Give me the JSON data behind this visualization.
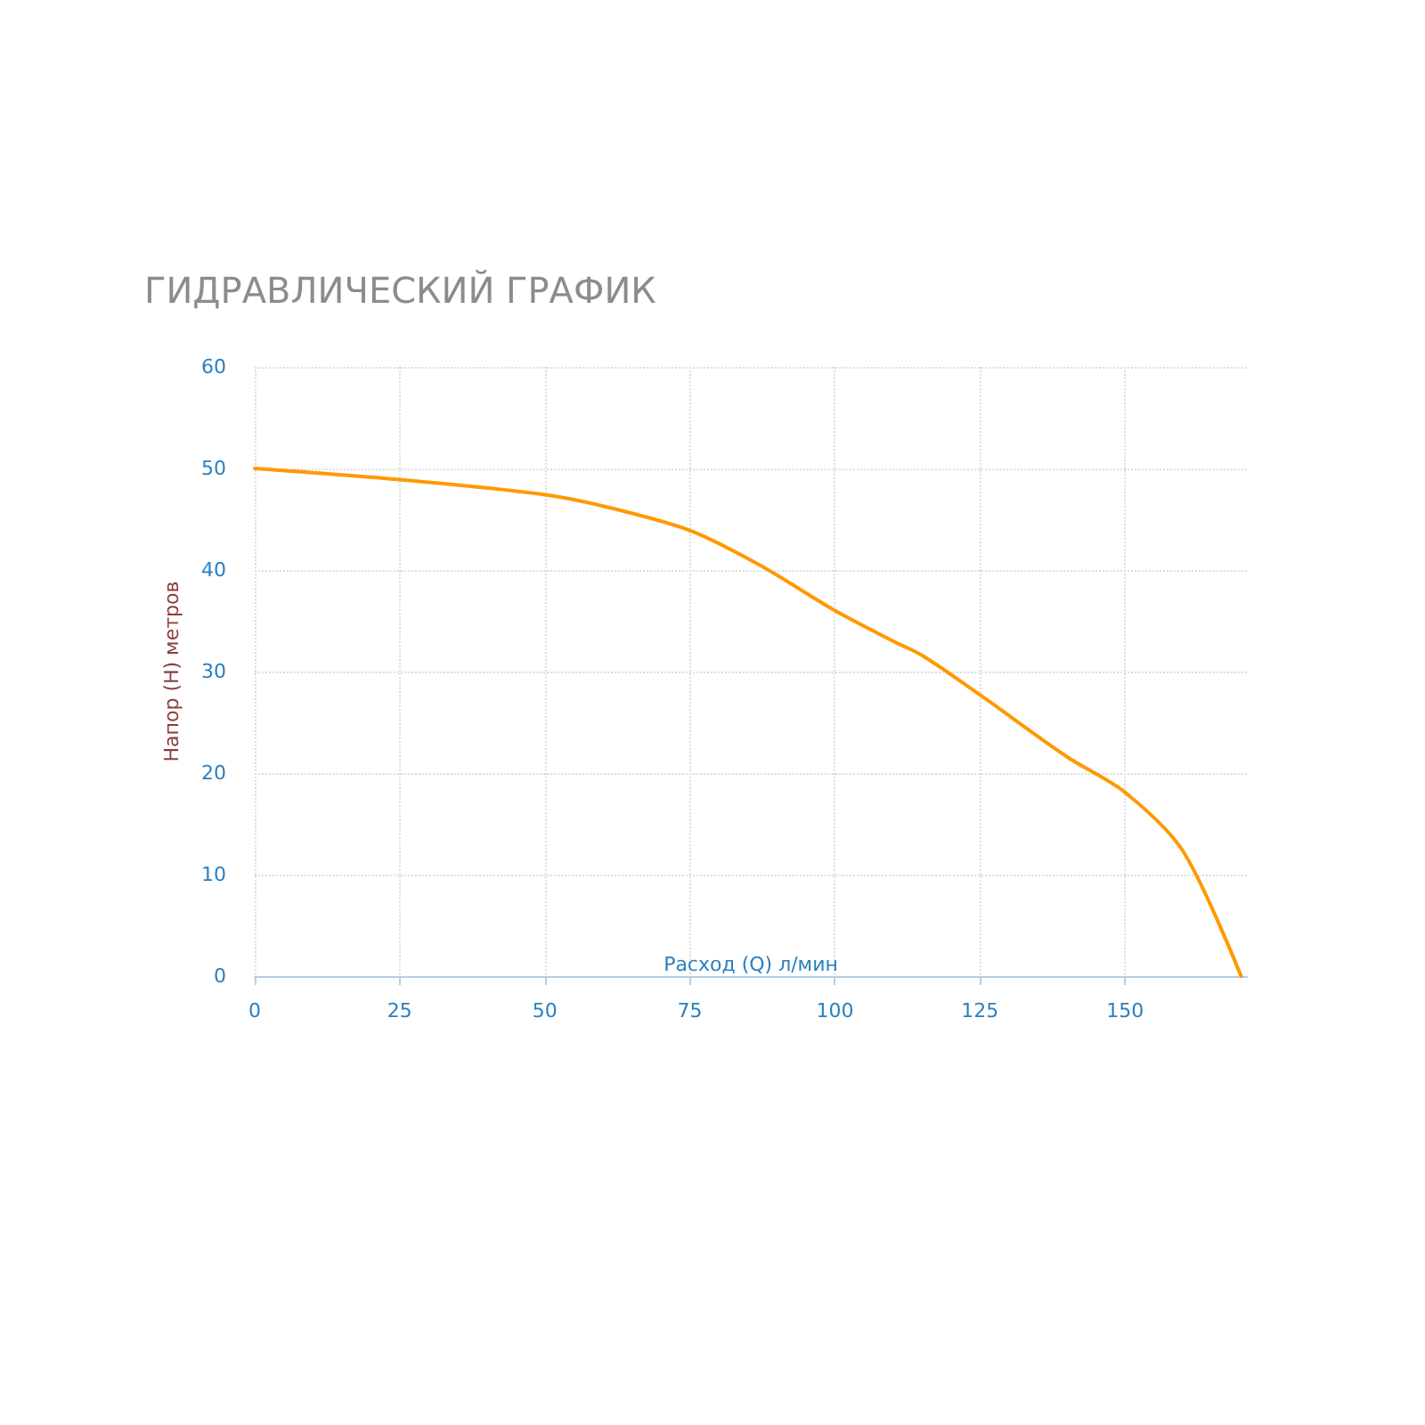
{
  "chart_data": {
    "type": "line",
    "title": "ГИДРАВЛИЧЕСКИЙ ГРАФИК",
    "xlabel": "Расход (Q) л/мин",
    "ylabel": "Напор (Н) метров",
    "x": [
      0,
      25,
      49,
      60,
      75,
      87,
      100,
      110,
      115,
      125,
      140,
      150,
      160,
      170
    ],
    "series": [
      {
        "color": "#ff9900",
        "values": [
          50,
          48.9,
          47.5,
          46.3,
          43.9,
          40.5,
          36,
          33,
          31.6,
          27.7,
          21.6,
          18.1,
          12.3,
          0
        ]
      }
    ],
    "xlim": [
      0,
      171
    ],
    "xticks": [
      0,
      25,
      50,
      75,
      100,
      125,
      150
    ],
    "ylim": [
      0,
      60
    ],
    "yticks": [
      0,
      10,
      20,
      30,
      40,
      50,
      60
    ],
    "grid": true,
    "marker": "none",
    "line_style": "solid"
  }
}
